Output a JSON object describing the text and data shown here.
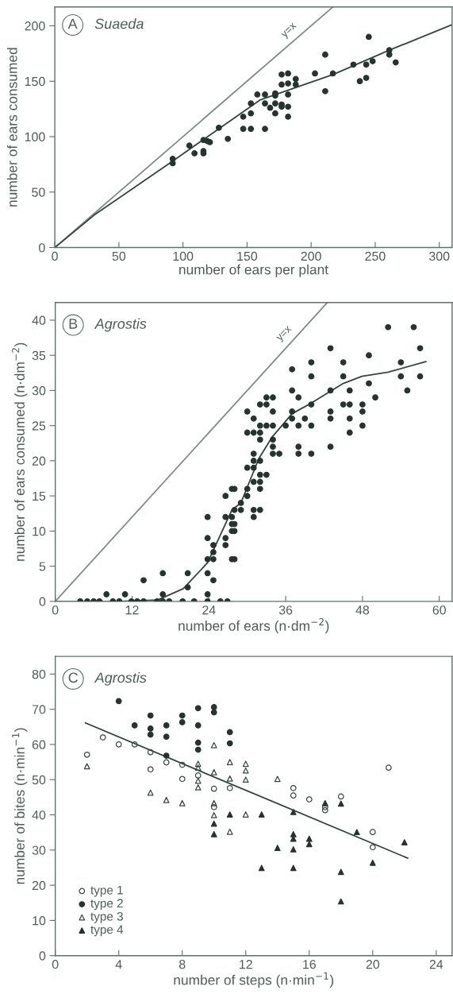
{
  "chart_data": [
    {
      "type": "scatter",
      "title": "A",
      "subtitle": "Suaeda",
      "xlabel": "number of ears per plant",
      "ylabel": "number of ears consumed",
      "xlim": [
        0,
        310
      ],
      "ylim": [
        0,
        217
      ],
      "xticks": [
        0,
        50,
        100,
        150,
        200,
        250,
        300
      ],
      "yticks": [
        0,
        50,
        100,
        150,
        200
      ],
      "grid": false,
      "legend": false,
      "annotations": [
        "y=x"
      ],
      "series": [
        {
          "type": "line",
          "color": "#7f8a85",
          "x": [
            0,
            217
          ],
          "values": [
            0,
            217
          ]
        },
        {
          "type": "line",
          "color": "#34443e",
          "x": [
            0,
            31,
            92,
            160,
            217,
            261,
            310
          ],
          "values": [
            0,
            29.5,
            78,
            133,
            156,
            178,
            201
          ]
        },
        {
          "marker": "circle",
          "color": "#26332f",
          "x": [
            92,
            92,
            105,
            109,
            116,
            116,
            116,
            119,
            121,
            128,
            135,
            147,
            147,
            153,
            153,
            153,
            158,
            164,
            164,
            164,
            168,
            172,
            172,
            172,
            172,
            177,
            177,
            177,
            177,
            182,
            182,
            182,
            182,
            182,
            188,
            188,
            203,
            211,
            211,
            217,
            233,
            238,
            243,
            243,
            245,
            248,
            261,
            261,
            266
          ],
          "values": [
            80,
            76,
            92,
            85,
            97,
            87,
            85,
            96,
            95,
            108,
            98,
            118,
            107,
            130,
            121,
            107,
            138,
            138,
            130,
            107,
            126,
            139,
            137,
            130,
            121,
            156,
            147,
            129,
            127,
            157,
            148,
            138,
            127,
            118,
            152,
            147,
            157,
            174,
            141,
            157,
            165,
            150,
            165,
            153,
            190,
            168,
            178,
            174,
            167
          ]
        }
      ]
    },
    {
      "type": "scatter",
      "title": "B",
      "subtitle": "Agrostis",
      "xlabel": "number of ears (n·dm$^{−2}$)",
      "ylabel": "number of ears consumed (n·dm$^{−2}$)",
      "xlim": [
        0,
        62
      ],
      "ylim": [
        0,
        42.5
      ],
      "xticks": [
        0,
        12,
        24,
        36,
        48,
        60
      ],
      "yticks": [
        0,
        5,
        10,
        15,
        20,
        25,
        30,
        35,
        40
      ],
      "grid": false,
      "legend": false,
      "annotations": [
        "y=x"
      ],
      "series": [
        {
          "type": "line",
          "color": "#7f8a85",
          "x": [
            0,
            42.5
          ],
          "values": [
            0,
            42.5
          ]
        },
        {
          "type": "line",
          "color": "#34443e",
          "x": [
            0,
            9.8,
            16,
            20,
            23.8,
            27.6,
            29,
            31.8,
            33.9,
            37,
            40,
            45,
            47.9,
            52,
            57.9
          ],
          "values": [
            0,
            0,
            0.2,
            1.8,
            5.5,
            13,
            14,
            20.3,
            23.4,
            26.7,
            28.2,
            31,
            32,
            32.6,
            34.1
          ]
        },
        {
          "marker": "circle",
          "color": "#26332f",
          "x": [
            3.9,
            5,
            6,
            6.9,
            9,
            10,
            11.9,
            12.8,
            13.8,
            15.9,
            16.8,
            17.8,
            19.9,
            21.7,
            23.8,
            25.8,
            26.9,
            8,
            10.9,
            16.8,
            23.8,
            13.8,
            16.8,
            20.7,
            23.8,
            20.7,
            23.8,
            23.8,
            23.8,
            24.7,
            24.7,
            24.7,
            24.7,
            26.6,
            26.6,
            26.6,
            26.6,
            27.6,
            27.6,
            27.6,
            27.6,
            27.6,
            28,
            28,
            28,
            28,
            28,
            29,
            29,
            30,
            30,
            30,
            30,
            30,
            31,
            31,
            31,
            31,
            31,
            31,
            31,
            31,
            32,
            32,
            32,
            32,
            32,
            32,
            32,
            32,
            32,
            33,
            33,
            33,
            33,
            34,
            34,
            34,
            34,
            34,
            34,
            35,
            36,
            37,
            37,
            37,
            37,
            38,
            38,
            38,
            38,
            39,
            40,
            40,
            40,
            40,
            40,
            43,
            43,
            43,
            43,
            43,
            45,
            45,
            45,
            46,
            46,
            46,
            46,
            48,
            48,
            48,
            49,
            49,
            50,
            52,
            54,
            54,
            55,
            56,
            57,
            57
          ],
          "values": [
            0,
            0,
            0,
            0,
            0,
            0,
            0,
            0,
            0,
            0,
            0,
            0,
            0,
            0,
            0,
            0,
            0,
            1,
            1,
            1,
            1,
            3,
            4,
            4,
            4,
            2,
            6,
            9,
            12,
            3,
            6,
            7,
            8,
            9,
            8,
            12,
            15,
            16,
            12,
            11,
            10,
            6,
            16,
            11,
            10,
            6,
            13,
            13,
            14,
            15,
            16,
            19,
            24,
            27,
            12,
            13,
            17,
            19,
            20,
            21,
            24,
            26,
            13,
            16,
            17,
            18,
            20,
            23,
            24,
            25,
            28,
            18,
            25,
            28,
            29,
            29,
            27,
            25,
            23,
            22,
            21,
            21,
            25,
            33,
            30,
            27,
            26,
            29,
            25,
            22,
            21,
            26,
            34,
            32,
            28,
            25,
            21,
            36,
            30,
            27,
            26,
            22,
            34,
            32,
            28,
            30,
            28,
            26,
            24,
            28,
            27,
            25,
            35,
            31,
            29,
            39,
            34,
            32,
            30,
            39,
            36,
            32
          ]
        }
      ]
    },
    {
      "type": "scatter",
      "title": "C",
      "subtitle": "Agrostis",
      "xlabel": "number of steps (n·min$^{−1}$)",
      "ylabel": "number of bites (n·min$^{−1}$)",
      "xlim": [
        0,
        25
      ],
      "ylim": [
        0,
        85
      ],
      "xticks": [
        0,
        4,
        8,
        12,
        16,
        20,
        24
      ],
      "yticks": [
        0,
        10,
        20,
        30,
        40,
        50,
        60,
        70,
        80
      ],
      "grid": false,
      "legend": "bottom left",
      "series": [
        {
          "type": "line",
          "color": "#34443e",
          "x": [
            1.9,
            22.2
          ],
          "values": [
            66.1,
            27.7
          ]
        },
        {
          "name": "type 1",
          "marker": "circle-open",
          "color": "#3a4843",
          "x": [
            2,
            3,
            4,
            5,
            6,
            6,
            7,
            8,
            8,
            9,
            10,
            10,
            11,
            15,
            15,
            16,
            17,
            17,
            18,
            20,
            20,
            21
          ],
          "values": [
            57.1,
            62,
            60,
            60,
            57.8,
            52.9,
            54.9,
            54.2,
            50.2,
            51.2,
            47.4,
            42.2,
            47.6,
            47.6,
            45.5,
            44.4,
            42.2,
            41.3,
            45.2,
            35.1,
            30.8,
            53.4
          ]
        },
        {
          "name": "type 2",
          "marker": "circle",
          "color": "#26332f",
          "x": [
            4,
            5,
            6,
            6,
            6,
            7,
            7,
            7,
            8,
            8,
            9,
            9,
            9,
            9,
            10,
            10,
            11,
            11
          ],
          "values": [
            72.3,
            65.4,
            68.2,
            64.5,
            62.8,
            65.4,
            62.2,
            56.8,
            68.2,
            66.3,
            70.3,
            65.4,
            60.5,
            58.5,
            70.6,
            69.1,
            63.5,
            60.3
          ]
        },
        {
          "name": "type 3",
          "marker": "triangle-open",
          "color": "#3a4843",
          "x": [
            2,
            6,
            7,
            8,
            9,
            9,
            9,
            9,
            10,
            10,
            10,
            10,
            11,
            11,
            11,
            12,
            12,
            12,
            12,
            14
          ],
          "values": [
            53.8,
            46.3,
            44.2,
            43.3,
            54.5,
            53.4,
            49.7,
            47.8,
            59.8,
            52.1,
            43.3,
            39.9,
            55,
            50.3,
            35.2,
            54.5,
            52.6,
            50,
            40.1,
            50.2
          ]
        },
        {
          "name": "type 4",
          "marker": "triangle",
          "color": "#26332f",
          "x": [
            10,
            10,
            11,
            13,
            13,
            14,
            15,
            15,
            15,
            15,
            15,
            16,
            16,
            17,
            18,
            18,
            18,
            19,
            20,
            22
          ],
          "values": [
            37.5,
            34.5,
            40.1,
            40.1,
            24.9,
            30.6,
            40.8,
            34.5,
            33.2,
            30.2,
            24.9,
            33.2,
            31.7,
            43.3,
            43.2,
            23.8,
            15.4,
            35.1,
            26.4,
            32.2
          ]
        }
      ]
    }
  ]
}
